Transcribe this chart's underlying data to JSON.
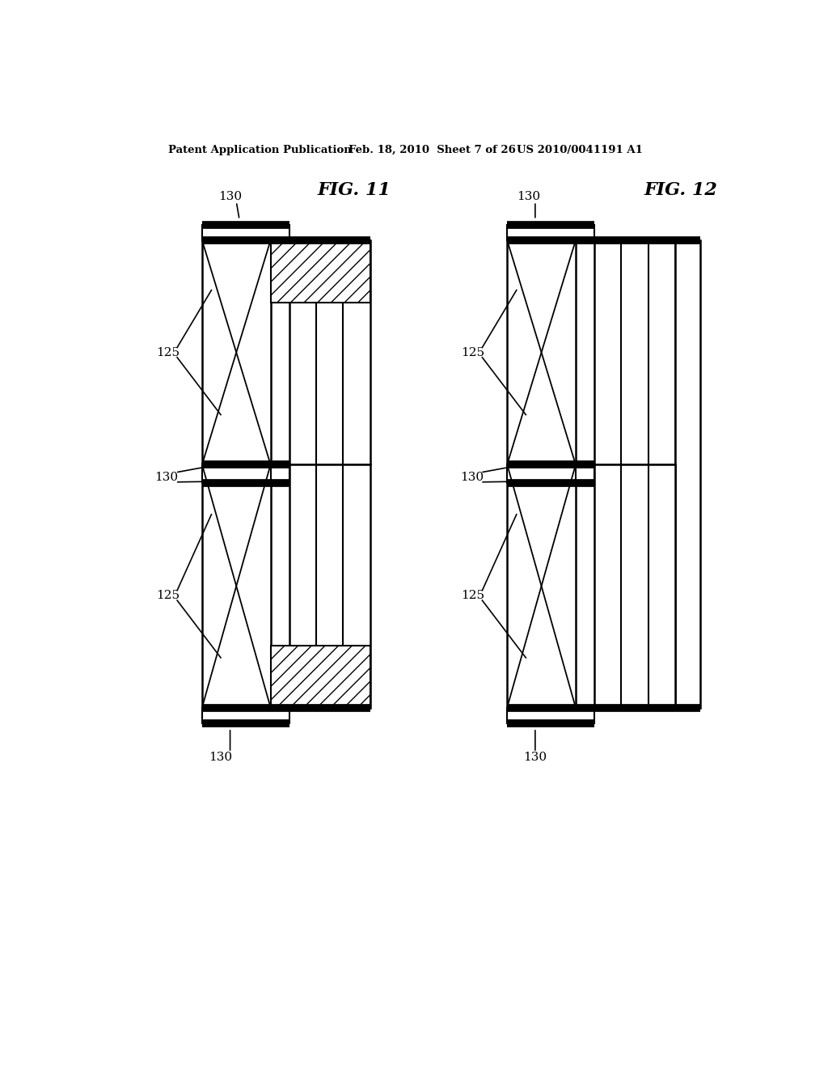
{
  "header_left": "Patent Application Publication",
  "header_mid": "Feb. 18, 2010  Sheet 7 of 26",
  "header_right": "US 2010/0041191 A1",
  "fig11_label": "FIG. 11",
  "fig12_label": "FIG. 12",
  "bg_color": "#ffffff"
}
